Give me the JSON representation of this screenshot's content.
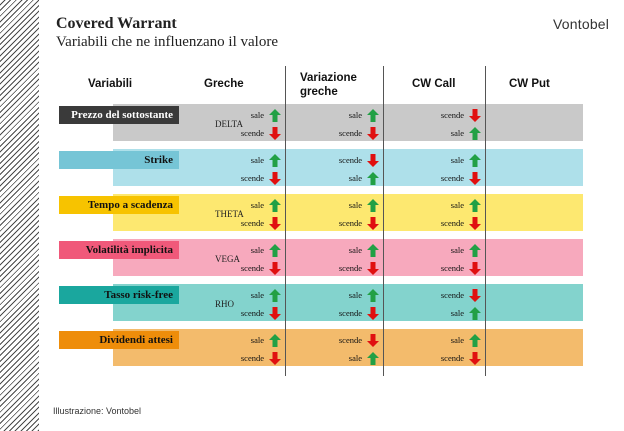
{
  "title": "Covered Warrant",
  "subtitle": "Variabili che ne influenzano il valore",
  "brand": "Vontobel",
  "headers": {
    "variabili": "Variabili",
    "greche": "Greche",
    "variazione": "Variazione greche",
    "call": "CW Call",
    "put": "CW Put"
  },
  "footer": "Illustrazione: Vontobel",
  "rows": [
    {
      "label": "Prezzo del sottostante",
      "greek": "DELTA",
      "band_color": "#c9c9c9",
      "label_color": "#3a3a3a",
      "label_text_color": "#ffffff",
      "variazione": [
        {
          "text": "sale",
          "dir": "up"
        },
        {
          "text": "scende",
          "dir": "down"
        }
      ],
      "call": [
        {
          "text": "sale",
          "dir": "up"
        },
        {
          "text": "scende",
          "dir": "down"
        }
      ],
      "put": [
        {
          "text": "scende",
          "dir": "down"
        },
        {
          "text": "sale",
          "dir": "up"
        }
      ]
    },
    {
      "label": "Strike",
      "greek": "",
      "band_color": "#aee0ea",
      "label_color": "#76c5d6",
      "label_text_color": "#111111",
      "variazione": [
        {
          "text": "sale",
          "dir": "up"
        },
        {
          "text": "scende",
          "dir": "down"
        }
      ],
      "call": [
        {
          "text": "scende",
          "dir": "down"
        },
        {
          "text": "sale",
          "dir": "up"
        }
      ],
      "put": [
        {
          "text": "sale",
          "dir": "up"
        },
        {
          "text": "scende",
          "dir": "down"
        }
      ]
    },
    {
      "label": "Tempo a scadenza",
      "greek": "THETA",
      "band_color": "#fde870",
      "label_color": "#f7c300",
      "label_text_color": "#111111",
      "variazione": [
        {
          "text": "sale",
          "dir": "up"
        },
        {
          "text": "scende",
          "dir": "down"
        }
      ],
      "call": [
        {
          "text": "sale",
          "dir": "up"
        },
        {
          "text": "scende",
          "dir": "down"
        }
      ],
      "put": [
        {
          "text": "sale",
          "dir": "up"
        },
        {
          "text": "scende",
          "dir": "down"
        }
      ]
    },
    {
      "label": "Volatilità implicita",
      "greek": "VEGA",
      "band_color": "#f7a9bd",
      "label_color": "#f0597a",
      "label_text_color": "#111111",
      "variazione": [
        {
          "text": "sale",
          "dir": "up"
        },
        {
          "text": "scende",
          "dir": "down"
        }
      ],
      "call": [
        {
          "text": "sale",
          "dir": "up"
        },
        {
          "text": "scende",
          "dir": "down"
        }
      ],
      "put": [
        {
          "text": "sale",
          "dir": "up"
        },
        {
          "text": "scende",
          "dir": "down"
        }
      ]
    },
    {
      "label": "Tasso risk-free",
      "greek": "RHO",
      "band_color": "#83d3cd",
      "label_color": "#1aa79e",
      "label_text_color": "#111111",
      "variazione": [
        {
          "text": "sale",
          "dir": "up"
        },
        {
          "text": "scende",
          "dir": "down"
        }
      ],
      "call": [
        {
          "text": "sale",
          "dir": "up"
        },
        {
          "text": "scende",
          "dir": "down"
        }
      ],
      "put": [
        {
          "text": "scende",
          "dir": "down"
        },
        {
          "text": "sale",
          "dir": "up"
        }
      ]
    },
    {
      "label": "Dividendi attesi",
      "greek": "",
      "band_color": "#f3bb6c",
      "label_color": "#ee8d0a",
      "label_text_color": "#111111",
      "variazione": [
        {
          "text": "sale",
          "dir": "up"
        },
        {
          "text": "scende",
          "dir": "down"
        }
      ],
      "call": [
        {
          "text": "scende",
          "dir": "down"
        },
        {
          "text": "sale",
          "dir": "up"
        }
      ],
      "put": [
        {
          "text": "sale",
          "dir": "up"
        },
        {
          "text": "scende",
          "dir": "down"
        }
      ]
    }
  ]
}
